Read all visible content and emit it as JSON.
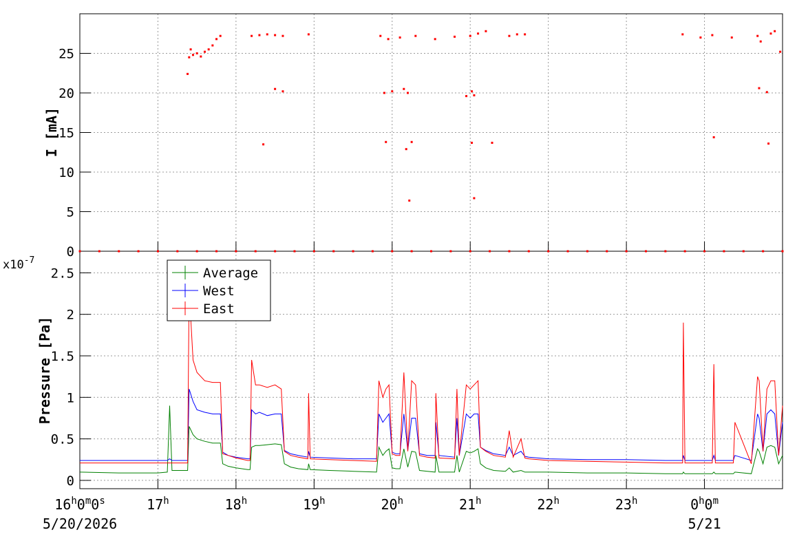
{
  "chart_data": [
    {
      "type": "scatter",
      "y_label": "I [mA]",
      "color": "#ff0000",
      "grid": true,
      "xlim": [
        16,
        25
      ],
      "xticks": [
        16,
        17,
        18,
        19,
        20,
        21,
        22,
        23,
        24
      ],
      "ylim": [
        0,
        30
      ],
      "yticks": [
        0,
        5,
        10,
        15,
        20,
        25
      ],
      "x": [
        16.0,
        16.25,
        16.5,
        16.75,
        17.0,
        17.25,
        17.5,
        17.75,
        18.0,
        18.25,
        18.5,
        18.75,
        19.0,
        19.25,
        19.5,
        19.75,
        20.0,
        20.25,
        20.5,
        20.75,
        21.0,
        21.25,
        21.5,
        21.75,
        22.0,
        22.25,
        22.5,
        22.75,
        23.0,
        23.25,
        23.5,
        23.75,
        24.0,
        24.25,
        24.5,
        24.75,
        25.0,
        17.38,
        17.4,
        17.42,
        17.45,
        17.5,
        17.55,
        17.6,
        17.65,
        17.7,
        17.75,
        17.8,
        18.2,
        18.3,
        18.4,
        18.5,
        18.6,
        18.5,
        18.6,
        18.35,
        18.93,
        19.85,
        19.9,
        19.92,
        19.95,
        20.0,
        20.1,
        20.15,
        20.18,
        20.2,
        20.22,
        20.25,
        20.3,
        20.55,
        20.8,
        20.95,
        21.0,
        21.02,
        21.02,
        21.05,
        21.05,
        21.1,
        21.2,
        21.28,
        21.5,
        21.6,
        21.7,
        23.72,
        23.95,
        24.1,
        24.12,
        24.35,
        24.68,
        24.7,
        24.72,
        24.8,
        24.82,
        24.85,
        24.9,
        24.97
      ],
      "values": [
        0,
        0,
        0,
        0,
        0,
        0,
        0,
        0,
        0,
        0,
        0,
        0,
        0,
        0,
        0,
        0,
        0,
        0,
        0,
        0,
        0,
        0,
        0,
        0,
        0,
        0,
        0,
        0,
        0,
        0,
        0,
        0,
        0,
        0,
        0,
        0,
        0,
        22.4,
        24.5,
        25.5,
        24.8,
        25.0,
        24.6,
        25.2,
        25.5,
        26.0,
        26.8,
        27.2,
        27.2,
        27.3,
        27.4,
        27.3,
        27.2,
        20.5,
        20.2,
        13.5,
        27.4,
        27.2,
        20.0,
        13.8,
        26.8,
        20.2,
        27.0,
        20.5,
        12.9,
        20.0,
        6.4,
        13.8,
        27.2,
        26.8,
        27.1,
        19.6,
        27.2,
        20.2,
        13.7,
        6.7,
        19.7,
        27.5,
        27.8,
        13.7,
        27.2,
        27.4,
        27.4,
        27.4,
        27.0,
        27.3,
        14.4,
        27.0,
        27.2,
        20.6,
        26.5,
        20.1,
        13.6,
        27.5,
        27.8,
        25.2
      ]
    },
    {
      "type": "line",
      "y_label": "Pressure [Pa]",
      "y_multiplier": {
        "base": "x10",
        "exponent": "-7"
      },
      "grid": true,
      "legend": "top-left",
      "xlim": [
        16,
        25
      ],
      "xticks": [
        {
          "value": 16,
          "label": "16h0m0s"
        },
        {
          "value": 17,
          "label": "17h"
        },
        {
          "value": 18,
          "label": "18h"
        },
        {
          "value": 19,
          "label": "19h"
        },
        {
          "value": 20,
          "label": "20h"
        },
        {
          "value": 21,
          "label": "21h"
        },
        {
          "value": 22,
          "label": "22h"
        },
        {
          "value": 23,
          "label": "23h"
        },
        {
          "value": 24,
          "label": "0h0m"
        }
      ],
      "x_date_labels": [
        {
          "value": 16,
          "label": "5/20/2026"
        },
        {
          "value": 24,
          "label": "5/21"
        }
      ],
      "ylim": [
        -0.1,
        2.76
      ],
      "yticks": [
        0,
        0.5,
        1,
        1.5,
        2,
        2.5
      ],
      "x": [
        16.0,
        16.5,
        17.0,
        17.12,
        17.15,
        17.18,
        17.3,
        17.38,
        17.4,
        17.45,
        17.5,
        17.6,
        17.7,
        17.8,
        17.83,
        17.9,
        18.0,
        18.15,
        18.18,
        18.2,
        18.25,
        18.3,
        18.4,
        18.5,
        18.58,
        18.62,
        18.7,
        18.8,
        18.92,
        18.93,
        18.95,
        19.2,
        19.5,
        19.8,
        19.83,
        19.88,
        19.92,
        19.96,
        20.0,
        20.05,
        20.1,
        20.15,
        20.2,
        20.25,
        20.3,
        20.35,
        20.45,
        20.55,
        20.56,
        20.6,
        20.8,
        20.83,
        20.86,
        20.95,
        21.0,
        21.05,
        21.1,
        21.13,
        21.2,
        21.3,
        21.45,
        21.5,
        21.55,
        21.65,
        21.7,
        21.75,
        22.0,
        22.5,
        23.0,
        23.5,
        23.72,
        23.73,
        23.75,
        24.0,
        24.1,
        24.12,
        24.14,
        24.3,
        24.37,
        24.39,
        24.6,
        24.68,
        24.7,
        24.75,
        24.8,
        24.85,
        24.9,
        24.95,
        25.0
      ],
      "series": [
        {
          "name": "Average",
          "color": "#008000",
          "values": [
            0.1,
            0.09,
            0.09,
            0.1,
            0.9,
            0.12,
            0.12,
            0.12,
            0.65,
            0.55,
            0.5,
            0.47,
            0.45,
            0.45,
            0.2,
            0.17,
            0.15,
            0.13,
            0.13,
            0.4,
            0.42,
            0.42,
            0.43,
            0.44,
            0.43,
            0.2,
            0.16,
            0.14,
            0.13,
            0.2,
            0.13,
            0.12,
            0.11,
            0.1,
            0.4,
            0.3,
            0.35,
            0.38,
            0.15,
            0.14,
            0.14,
            0.38,
            0.16,
            0.35,
            0.34,
            0.12,
            0.11,
            0.1,
            0.3,
            0.1,
            0.1,
            0.3,
            0.1,
            0.35,
            0.33,
            0.35,
            0.38,
            0.2,
            0.15,
            0.12,
            0.11,
            0.15,
            0.1,
            0.12,
            0.1,
            0.1,
            0.1,
            0.09,
            0.09,
            0.08,
            0.08,
            0.1,
            0.08,
            0.08,
            0.08,
            0.1,
            0.08,
            0.08,
            0.08,
            0.1,
            0.08,
            0.38,
            0.35,
            0.2,
            0.4,
            0.42,
            0.4,
            0.2,
            0.3
          ]
        },
        {
          "name": "West",
          "color": "#0000ff",
          "values": [
            0.24,
            0.24,
            0.24,
            0.24,
            0.26,
            0.24,
            0.24,
            0.24,
            1.1,
            0.95,
            0.85,
            0.82,
            0.8,
            0.8,
            0.34,
            0.3,
            0.28,
            0.26,
            0.26,
            0.85,
            0.8,
            0.82,
            0.78,
            0.8,
            0.8,
            0.36,
            0.32,
            0.3,
            0.28,
            0.35,
            0.28,
            0.27,
            0.26,
            0.26,
            0.8,
            0.7,
            0.75,
            0.8,
            0.34,
            0.32,
            0.32,
            0.8,
            0.36,
            0.75,
            0.75,
            0.32,
            0.3,
            0.3,
            0.7,
            0.3,
            0.28,
            0.75,
            0.3,
            0.8,
            0.75,
            0.8,
            0.8,
            0.4,
            0.36,
            0.32,
            0.3,
            0.4,
            0.3,
            0.35,
            0.29,
            0.28,
            0.26,
            0.25,
            0.25,
            0.24,
            0.24,
            0.3,
            0.24,
            0.24,
            0.24,
            0.3,
            0.24,
            0.24,
            0.24,
            0.3,
            0.24,
            0.8,
            0.75,
            0.35,
            0.8,
            0.85,
            0.8,
            0.3,
            0.7
          ]
        },
        {
          "name": "East",
          "color": "#ff0000",
          "values": [
            0.21,
            0.21,
            0.21,
            0.21,
            0.21,
            0.21,
            0.21,
            0.21,
            2.3,
            1.45,
            1.3,
            1.2,
            1.18,
            1.18,
            0.32,
            0.3,
            0.27,
            0.24,
            0.24,
            1.45,
            1.15,
            1.15,
            1.12,
            1.15,
            1.1,
            0.35,
            0.3,
            0.28,
            0.26,
            1.05,
            0.26,
            0.25,
            0.24,
            0.23,
            1.2,
            1.0,
            1.1,
            1.15,
            0.32,
            0.3,
            0.3,
            1.3,
            0.35,
            1.2,
            1.15,
            0.3,
            0.28,
            0.27,
            1.05,
            0.27,
            0.26,
            1.1,
            0.3,
            1.15,
            1.1,
            1.15,
            1.2,
            0.4,
            0.35,
            0.3,
            0.28,
            0.6,
            0.28,
            0.5,
            0.27,
            0.26,
            0.24,
            0.23,
            0.22,
            0.21,
            0.21,
            1.9,
            0.21,
            0.21,
            0.21,
            1.4,
            0.21,
            0.21,
            0.21,
            0.7,
            0.2,
            1.25,
            1.2,
            0.35,
            1.1,
            1.2,
            1.2,
            0.3,
            0.9
          ]
        }
      ]
    }
  ]
}
